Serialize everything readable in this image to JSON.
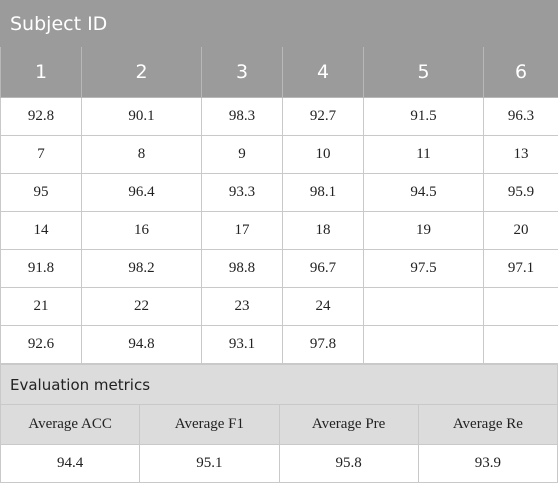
{
  "subject_table": {
    "title": "Subject ID",
    "headers": [
      "1",
      "2",
      "3",
      "4",
      "5",
      "6"
    ],
    "rows": [
      [
        "92.8",
        "90.1",
        "98.3",
        "92.7",
        "91.5",
        "96.3"
      ],
      [
        "7",
        "8",
        "9",
        "10",
        "11",
        "13"
      ],
      [
        "95",
        "96.4",
        "93.3",
        "98.1",
        "94.5",
        "95.9"
      ],
      [
        "14",
        "16",
        "17",
        "18",
        "19",
        "20"
      ],
      [
        "91.8",
        "98.2",
        "98.8",
        "96.7",
        "97.5",
        "97.1"
      ],
      [
        "21",
        "22",
        "23",
        "24",
        "",
        ""
      ],
      [
        "92.6",
        "94.8",
        "93.1",
        "97.8",
        "",
        ""
      ]
    ]
  },
  "evaluation": {
    "title": "Evaluation metrics",
    "headers": [
      "Average ACC",
      "Average F1",
      "Average Pre",
      "Average Re"
    ],
    "values": [
      "94.4",
      "95.1",
      "95.8",
      "93.9"
    ]
  },
  "colors": {
    "header_bg": "#9b9b9b",
    "eval_header_bg": "#dcdcdc",
    "border": "#c9c9c9"
  }
}
